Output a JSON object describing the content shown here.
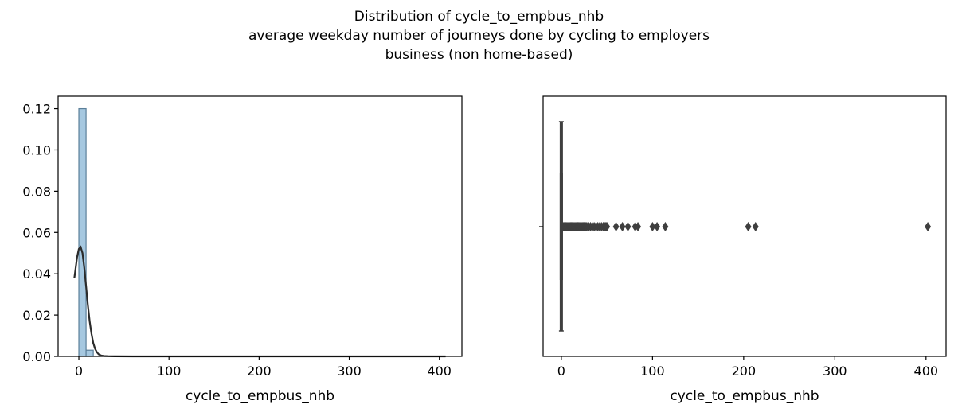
{
  "figure": {
    "title_lines": [
      "Distribution of cycle_to_empbus_nhb",
      "average weekday number of journeys done by cycling to employers",
      "business (non home-based)"
    ]
  },
  "chart_data": [
    {
      "type": "histogram",
      "xlabel": "cycle_to_empbus_nhb",
      "ylabel": "",
      "xlim": [
        -23,
        425
      ],
      "ylim": [
        0,
        0.126
      ],
      "xticks": [
        0,
        100,
        200,
        300,
        400
      ],
      "xtick_labels": [
        "0",
        "100",
        "200",
        "300",
        "400"
      ],
      "yticks": [
        0.0,
        0.02,
        0.04,
        0.06,
        0.08,
        0.1,
        0.12
      ],
      "ytick_labels": [
        "0.00",
        "0.02",
        "0.04",
        "0.06",
        "0.08",
        "0.10",
        "0.12"
      ],
      "bars": [
        {
          "x0": 0,
          "x1": 8,
          "density": 0.12
        },
        {
          "x0": 8,
          "x1": 16,
          "density": 0.003
        }
      ],
      "bar_color": "#a6c8e0",
      "kde": {
        "color": "#2b2b2b",
        "x": [
          -5,
          -2,
          0,
          2,
          4,
          6,
          8,
          10,
          12,
          14,
          16,
          18,
          20,
          22,
          25,
          28,
          32,
          40,
          60,
          100,
          200,
          300,
          407
        ],
        "y": [
          0.038,
          0.048,
          0.052,
          0.053,
          0.05,
          0.043,
          0.034,
          0.025,
          0.017,
          0.011,
          0.0065,
          0.0037,
          0.002,
          0.001,
          0.0004,
          0.0002,
          0.0001,
          3e-05,
          1e-05,
          0,
          0,
          0,
          0
        ]
      },
      "grid": false
    },
    {
      "type": "boxplot",
      "xlabel": "cycle_to_empbus_nhb",
      "xlim": [
        -20,
        422
      ],
      "xticks": [
        0,
        100,
        200,
        300,
        400
      ],
      "xtick_labels": [
        "0",
        "100",
        "200",
        "300",
        "400"
      ],
      "box": {
        "q1": 0,
        "median": 0,
        "q3": 0,
        "whisker_low": 0,
        "whisker_high": 0
      },
      "outliers": [
        2,
        3,
        4,
        5,
        6,
        7,
        8,
        9,
        10,
        11,
        12,
        13,
        14,
        15,
        16,
        17,
        18,
        19,
        20,
        21,
        22,
        23,
        24,
        25,
        26,
        27,
        28,
        30,
        32,
        34,
        36,
        38,
        40,
        42,
        44,
        46,
        48,
        49,
        50,
        60,
        67,
        73,
        81,
        84,
        100,
        105,
        114,
        205,
        213,
        402
      ],
      "color": "#3f3f3f",
      "grid": false
    }
  ]
}
